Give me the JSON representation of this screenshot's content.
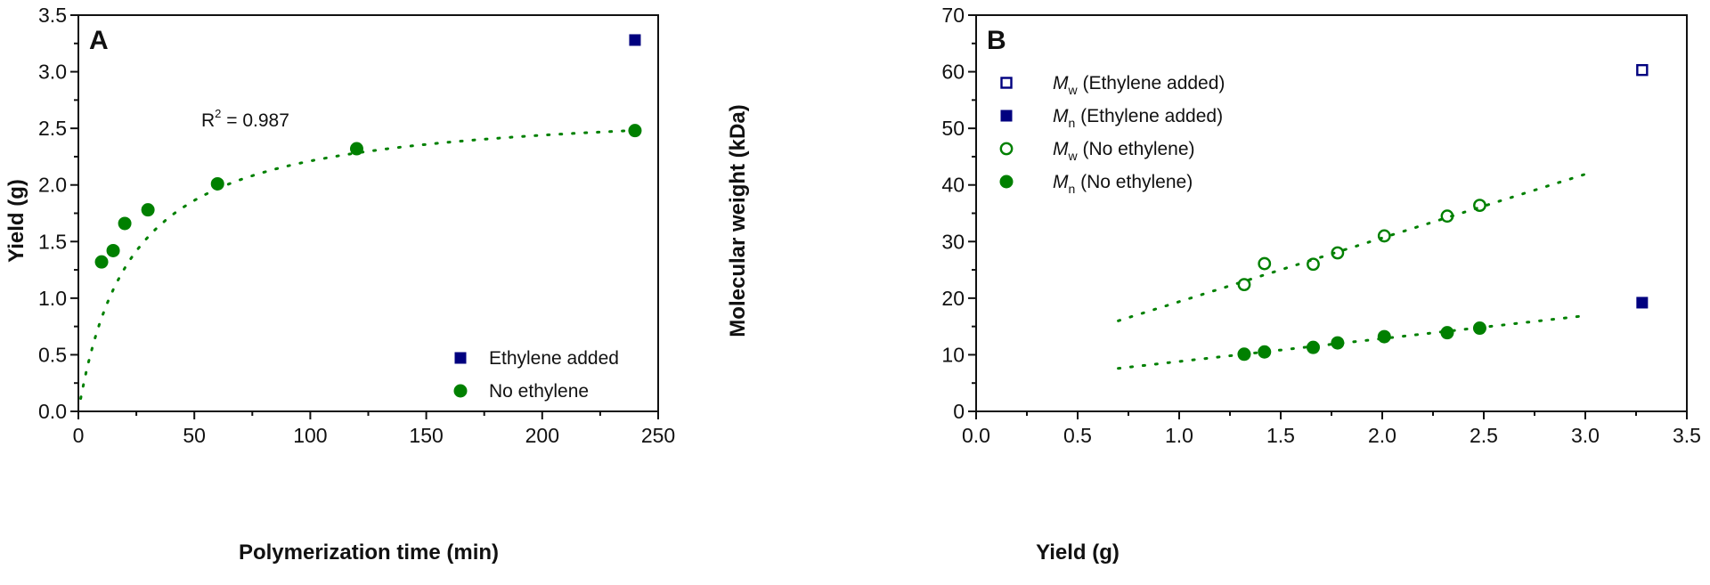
{
  "chart_data": [
    {
      "type": "scatter",
      "panel_label": "A",
      "xlabel": "Polymerization time (min)",
      "ylabel": "Yield (g)",
      "xlim": [
        0,
        250
      ],
      "ylim": [
        0,
        3.5
      ],
      "x_ticks": [
        "0",
        "50",
        "100",
        "150",
        "200",
        "250"
      ],
      "y_ticks": [
        "0.0",
        "0.5",
        "1.0",
        "1.5",
        "2.0",
        "2.5",
        "3.0",
        "3.5"
      ],
      "grid": false,
      "legend_position": "bottom-right",
      "annotation": {
        "prefix": "R",
        "sup": "2",
        "suffix": " = 0.987"
      },
      "series": [
        {
          "name": "Ethylene added",
          "marker": "square-filled",
          "color": "#00007f",
          "points": [
            [
              240,
              3.28
            ]
          ]
        },
        {
          "name": "No ethylene",
          "marker": "circle-filled",
          "color": "#008000",
          "points": [
            [
              10,
              1.32
            ],
            [
              15,
              1.42
            ],
            [
              20,
              1.66
            ],
            [
              30,
              1.78
            ],
            [
              60,
              2.01
            ],
            [
              120,
              2.32
            ],
            [
              240,
              2.48
            ]
          ]
        }
      ],
      "fit": {
        "type": "hyperbolic",
        "ymax": 2.72,
        "k": 23,
        "x_range": [
          1,
          240
        ],
        "style": "dotted",
        "color": "#008000"
      }
    },
    {
      "type": "scatter",
      "panel_label": "B",
      "xlabel": "Yield (g)",
      "ylabel": "Molecular weight (kDa)",
      "xlim": [
        0,
        3.5
      ],
      "ylim": [
        0,
        70
      ],
      "x_ticks": [
        "0.0",
        "0.5",
        "1.0",
        "1.5",
        "2.0",
        "2.5",
        "3.0",
        "3.5"
      ],
      "y_ticks": [
        "0",
        "10",
        "20",
        "30",
        "40",
        "50",
        "60",
        "70"
      ],
      "grid": false,
      "legend_position": "top-left",
      "series": [
        {
          "name": "Mw (Ethylene added)",
          "symbol": "M",
          "subscript": "w",
          "label_rest": " (Ethylene added)",
          "marker": "square-open",
          "color": "#00007f",
          "points": [
            [
              3.28,
              60.3
            ]
          ]
        },
        {
          "name": "Mn (Ethylene added)",
          "symbol": "M",
          "subscript": "n",
          "label_rest": " (Ethylene added)",
          "marker": "square-filled",
          "color": "#00007f",
          "points": [
            [
              3.28,
              19.2
            ]
          ]
        },
        {
          "name": "Mw (No ethylene)",
          "symbol": "M",
          "subscript": "w",
          "label_rest": " (No ethylene)",
          "marker": "circle-open",
          "color": "#008000",
          "points": [
            [
              1.32,
              22.4
            ],
            [
              1.42,
              26.1
            ],
            [
              1.66,
              26.0
            ],
            [
              1.78,
              28.0
            ],
            [
              2.01,
              31.0
            ],
            [
              2.32,
              34.5
            ],
            [
              2.48,
              36.4
            ]
          ]
        },
        {
          "name": "Mn (No ethylene)",
          "symbol": "M",
          "subscript": "n",
          "label_rest": " (No ethylene)",
          "marker": "circle-filled",
          "color": "#008000",
          "points": [
            [
              1.32,
              10.1
            ],
            [
              1.42,
              10.5
            ],
            [
              1.66,
              11.3
            ],
            [
              1.78,
              12.1
            ],
            [
              2.01,
              13.2
            ],
            [
              2.32,
              13.9
            ],
            [
              2.48,
              14.7
            ]
          ]
        }
      ],
      "fits": [
        {
          "series": "Mw (No ethylene)",
          "type": "linear",
          "x_range": [
            0.7,
            3.0
          ],
          "y_range": [
            16.0,
            41.9
          ],
          "style": "dotted",
          "color": "#008000"
        },
        {
          "series": "Mn (No ethylene)",
          "type": "linear",
          "x_range": [
            0.7,
            3.0
          ],
          "y_range": [
            7.6,
            16.9
          ],
          "style": "dotted",
          "color": "#008000"
        }
      ]
    }
  ]
}
